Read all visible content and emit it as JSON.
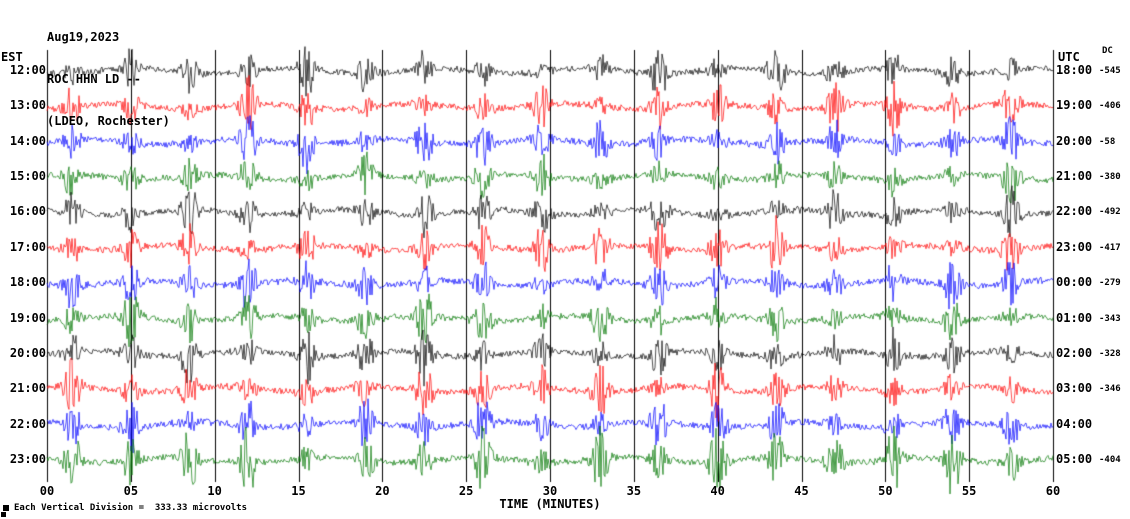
{
  "header": {
    "date": "Aug19,2023",
    "station_line": "ROC HHN LD --",
    "location_line": "(LDEO, Rochester)"
  },
  "axis_labels": {
    "left": "EST",
    "right": "UTC",
    "dc": "DC",
    "x_title": "TIME (MINUTES)"
  },
  "footer": {
    "scale_note": "Each Vertical Division =  333.33 microvolts"
  },
  "chart_data": {
    "type": "line",
    "subtype": "helicorder-seismogram",
    "title": "ROC HHN LD -- (LDEO, Rochester) Aug19,2023",
    "xlabel": "TIME (MINUTES)",
    "x_range_minutes": [
      0,
      60
    ],
    "x_tick_step": 5,
    "x_ticks": [
      "00",
      "05",
      "10",
      "15",
      "20",
      "25",
      "30",
      "35",
      "40",
      "45",
      "50",
      "55",
      "60"
    ],
    "grid": true,
    "colors": {
      "black": "#000000",
      "red": "#ff0000",
      "blue": "#0000ff",
      "green": "#007700"
    },
    "rows": [
      {
        "est": "12:00",
        "utc": "18:00",
        "dc": "-545",
        "color": "black",
        "seed": 1
      },
      {
        "est": "13:00",
        "utc": "19:00",
        "dc": "-406",
        "color": "red",
        "seed": 2
      },
      {
        "est": "14:00",
        "utc": "20:00",
        "dc": "-58",
        "color": "blue",
        "seed": 3
      },
      {
        "est": "15:00",
        "utc": "21:00",
        "dc": "-380",
        "color": "green",
        "seed": 4
      },
      {
        "est": "16:00",
        "utc": "22:00",
        "dc": "-492",
        "color": "black",
        "seed": 5
      },
      {
        "est": "17:00",
        "utc": "23:00",
        "dc": "-417",
        "color": "red",
        "seed": 6
      },
      {
        "est": "18:00",
        "utc": "00:00",
        "dc": "-279",
        "color": "blue",
        "seed": 7
      },
      {
        "est": "19:00",
        "utc": "01:00",
        "dc": "-343",
        "color": "green",
        "seed": 8
      },
      {
        "est": "20:00",
        "utc": "02:00",
        "dc": "-328",
        "color": "black",
        "seed": 9
      },
      {
        "est": "21:00",
        "utc": "03:00",
        "dc": "-346",
        "color": "red",
        "seed": 10
      },
      {
        "est": "22:00",
        "utc": "04:00",
        "dc": "",
        "color": "blue",
        "seed": 11
      },
      {
        "est": "23:00",
        "utc": "05:00",
        "dc": "-404",
        "color": "green",
        "seed": 12
      }
    ],
    "event_minutes": [
      1.5,
      5,
      8.5,
      12,
      15.5,
      19,
      22.5,
      26,
      29.5,
      33,
      36.5,
      40,
      43.5,
      47,
      50.5,
      54,
      57.5
    ]
  }
}
